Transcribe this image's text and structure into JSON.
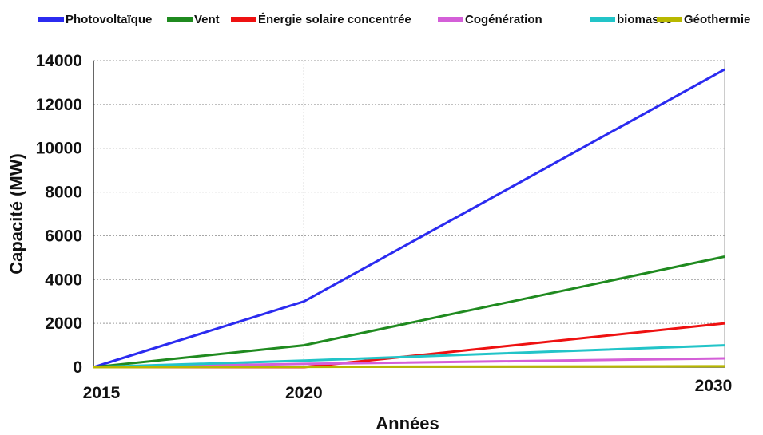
{
  "chart_data": {
    "type": "line",
    "title": "",
    "xlabel": "Années",
    "ylabel": "Capacité (MW)",
    "x": [
      2015,
      2020,
      2030
    ],
    "xlim": [
      2015,
      2030
    ],
    "ylim": [
      0,
      14000
    ],
    "xticks": [
      2015,
      2020,
      2030
    ],
    "yticks": [
      0,
      2000,
      4000,
      6000,
      8000,
      10000,
      12000,
      14000
    ],
    "grid": "dotted",
    "legend_position": "top",
    "series": [
      {
        "name": "Photovoltaïque",
        "color": "#2b2bf0",
        "values": [
          0,
          3000,
          13600
        ]
      },
      {
        "name": "Vent",
        "color": "#1f8a1f",
        "values": [
          0,
          1000,
          5050
        ]
      },
      {
        "name": "Énergie solaire concentrée",
        "color": "#ee1111",
        "values": [
          0,
          0,
          2000
        ]
      },
      {
        "name": "Cogénération",
        "color": "#d45fd8",
        "values": [
          0,
          150,
          400
        ]
      },
      {
        "name": "biomasse",
        "color": "#22c4c8",
        "values": [
          0,
          300,
          1000
        ]
      },
      {
        "name": "Géothermie",
        "color": "#b8b800",
        "values": [
          0,
          15,
          40
        ]
      }
    ]
  }
}
